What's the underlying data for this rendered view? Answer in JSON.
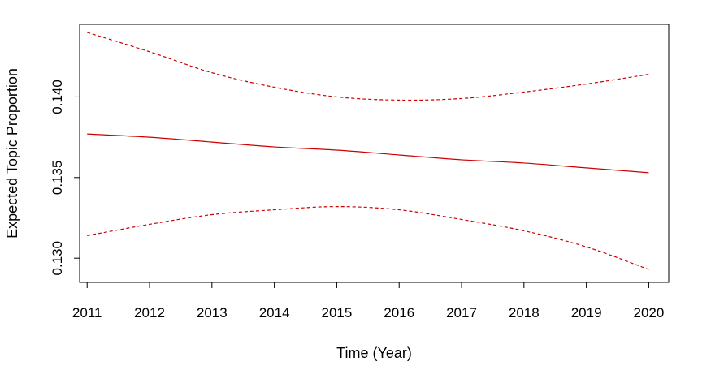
{
  "chart_data": {
    "type": "line",
    "title": "",
    "xlabel": "Time (Year)",
    "ylabel": "Expected Topic Proportion",
    "xlim": [
      2010.88,
      2020.32
    ],
    "ylim": [
      0.1285,
      0.1445
    ],
    "x_ticks": [
      2011,
      2012,
      2013,
      2014,
      2015,
      2016,
      2017,
      2018,
      2019,
      2020
    ],
    "x_tick_labels": [
      "2011",
      "2012",
      "2013",
      "2014",
      "2015",
      "2016",
      "2017",
      "2018",
      "2019",
      "2020"
    ],
    "y_ticks": [
      0.13,
      0.135,
      0.14
    ],
    "y_tick_labels": [
      "0.130",
      "0.135",
      "0.140"
    ],
    "grid": false,
    "legend": "none",
    "colors": {
      "series": "#cc0000",
      "axis": "#000000"
    },
    "series": [
      {
        "style": "solid",
        "x": [
          2011,
          2012,
          2013,
          2014,
          2015,
          2016,
          2017,
          2018,
          2019,
          2020
        ],
        "values": [
          0.1377,
          0.1375,
          0.1372,
          0.1369,
          0.1367,
          0.1364,
          0.1361,
          0.1359,
          0.1356,
          0.1353
        ]
      },
      {
        "style": "dashed",
        "x": [
          2011,
          2012,
          2013,
          2014,
          2015,
          2016,
          2017,
          2018,
          2019,
          2020
        ],
        "values": [
          0.144,
          0.1428,
          0.1415,
          0.1406,
          0.14,
          0.1398,
          0.1399,
          0.1403,
          0.1408,
          0.1414
        ]
      },
      {
        "style": "dashed",
        "x": [
          2011,
          2012,
          2013,
          2014,
          2015,
          2016,
          2017,
          2018,
          2019,
          2020
        ],
        "values": [
          0.1314,
          0.1321,
          0.1327,
          0.133,
          0.1332,
          0.133,
          0.1324,
          0.1317,
          0.1307,
          0.1293
        ]
      }
    ]
  }
}
